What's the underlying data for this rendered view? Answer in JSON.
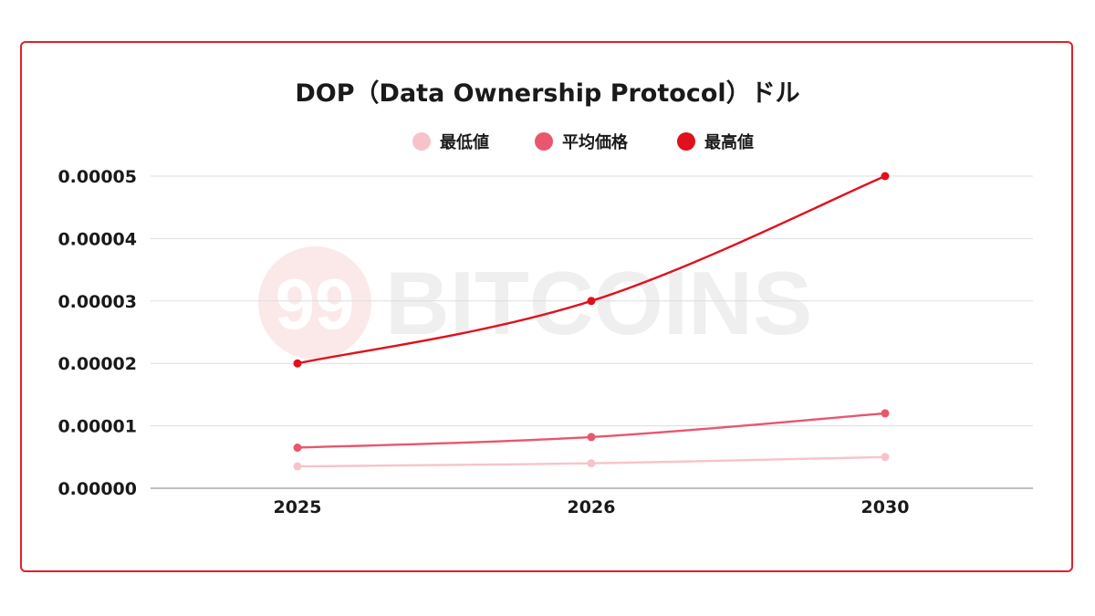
{
  "watermark": {
    "badge": "99",
    "text": "BITCOINS"
  },
  "chart_data": {
    "type": "line",
    "title": "DOP（Data Ownership Protocol）ドル",
    "xlabel": "",
    "ylabel": "",
    "categories": [
      "2025",
      "2026",
      "2030"
    ],
    "y_ticks": [
      "0.00000",
      "0.00001",
      "0.00002",
      "0.00003",
      "0.00004",
      "0.00005"
    ],
    "y_tick_values": [
      0,
      1e-05,
      2e-05,
      3e-05,
      4e-05,
      5e-05
    ],
    "ylim": [
      0,
      5e-05
    ],
    "grid": true,
    "legend_position": "top-center",
    "series": [
      {
        "name": "最低値",
        "color": "#f7c3cb",
        "values": [
          3.5e-06,
          4e-06,
          5e-06
        ]
      },
      {
        "name": "平均価格",
        "color": "#e9566e",
        "values": [
          6.5e-06,
          8.2e-06,
          1.2e-05
        ]
      },
      {
        "name": "最高値",
        "color": "#e0101e",
        "values": [
          2e-05,
          3e-05,
          5e-05
        ]
      }
    ]
  }
}
